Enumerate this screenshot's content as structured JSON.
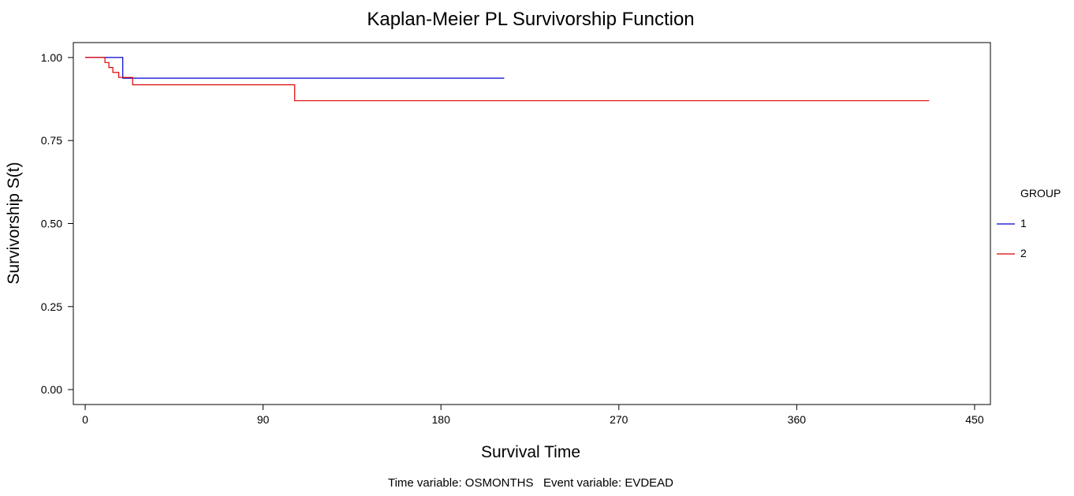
{
  "chart_data": {
    "type": "line",
    "title": "Kaplan-Meier PL Survivorship Function",
    "xlabel": "Survival Time",
    "ylabel": "Survivorship S(t)",
    "footnote": "Time variable: OSMONTHS   Event variable: EVDEAD",
    "xlim": [
      -6,
      458
    ],
    "ylim": [
      -0.045,
      1.045
    ],
    "x_ticks": [
      0,
      90,
      180,
      270,
      360,
      450
    ],
    "x_tick_labels": [
      "0",
      "90",
      "180",
      "270",
      "360",
      "450"
    ],
    "y_ticks": [
      0,
      0.25,
      0.5,
      0.75,
      1
    ],
    "y_tick_labels": [
      "0.00",
      "0.25",
      "0.50",
      "0.75",
      "1.00"
    ],
    "grid": false,
    "legend": {
      "title": "GROUP",
      "position": "right"
    },
    "series": [
      {
        "name": "1",
        "color": "#0000cc",
        "step": true,
        "x": [
          0,
          19,
          19,
          212
        ],
        "y": [
          1.0,
          1.0,
          0.938,
          0.938
        ]
      },
      {
        "name": "2",
        "color": "#dd0000",
        "step": true,
        "x": [
          0,
          10,
          10,
          12,
          12,
          14,
          14,
          17,
          17,
          24,
          24,
          106,
          106,
          427
        ],
        "y": [
          1.0,
          1.0,
          0.985,
          0.985,
          0.97,
          0.97,
          0.955,
          0.955,
          0.94,
          0.94,
          0.918,
          0.918,
          0.87,
          0.87
        ]
      }
    ]
  }
}
